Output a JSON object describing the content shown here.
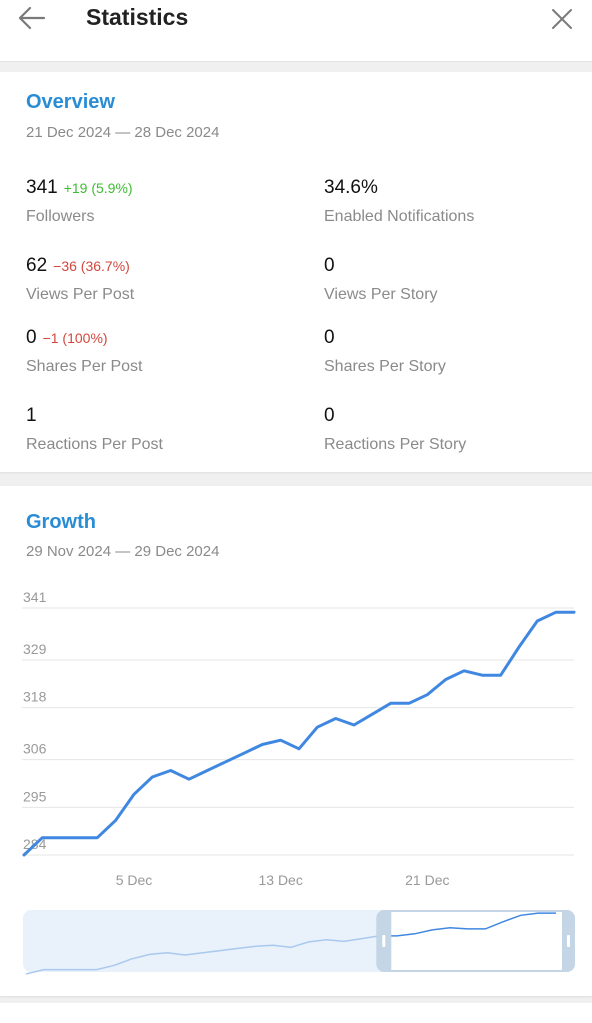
{
  "header": {
    "title": "Statistics",
    "back_icon": "arrow-left-icon",
    "close_icon": "close-icon"
  },
  "overview": {
    "title": "Overview",
    "date_range": "21 Dec 2024 — 28 Dec 2024",
    "stats": [
      {
        "value": "341",
        "delta": "+19 (5.9%)",
        "delta_dir": "up",
        "label": "Followers"
      },
      {
        "value": "34.6%",
        "delta": "",
        "delta_dir": "",
        "label": "Enabled Notifications"
      },
      {
        "value": "62",
        "delta": "−36 (36.7%)",
        "delta_dir": "down",
        "label": "Views Per Post"
      },
      {
        "value": "0",
        "delta": "",
        "delta_dir": "",
        "label": "Views Per Story"
      },
      {
        "value": "0",
        "delta": "−1 (100%)",
        "delta_dir": "down",
        "label": "Shares Per Post"
      },
      {
        "value": "0",
        "delta": "",
        "delta_dir": "",
        "label": "Shares Per Story"
      },
      {
        "value": "1",
        "delta": "",
        "delta_dir": "",
        "label": "Reactions Per Post"
      },
      {
        "value": "0",
        "delta": "",
        "delta_dir": "",
        "label": "Reactions Per Story"
      }
    ]
  },
  "growth": {
    "title": "Growth",
    "date_range": "29 Nov 2024 — 29 Dec 2024"
  },
  "colors": {
    "accent": "#2a8dd4",
    "line": "#3f87e0",
    "positive": "#3ebd33",
    "negative": "#d2473e",
    "muted": "#8a8a8a"
  },
  "chart_data": {
    "type": "line",
    "title": "",
    "xlabel": "",
    "ylabel": "",
    "x_tick_labels": [
      "5 Dec",
      "13 Dec",
      "21 Dec"
    ],
    "x_tick_days": [
      6,
      14,
      22
    ],
    "y_tick_labels": [
      "284",
      "295",
      "306",
      "318",
      "329",
      "341"
    ],
    "y_ticks": [
      284,
      295,
      306,
      318,
      329,
      341
    ],
    "ylim": [
      284,
      341
    ],
    "grid": true,
    "series": [
      {
        "name": "",
        "days": [
          0,
          1,
          2,
          3,
          4,
          5,
          6,
          7,
          8,
          9,
          10,
          11,
          12,
          13,
          14,
          15,
          16,
          17,
          18,
          19,
          20,
          21,
          22,
          23,
          24,
          25,
          26,
          27,
          28,
          29,
          30
        ],
        "values": [
          284,
          288,
          288,
          288,
          288,
          292,
          298,
          302,
          303.5,
          301.5,
          303.5,
          305.5,
          307.5,
          309.5,
          310.5,
          308.5,
          313.5,
          315.5,
          314,
          316.5,
          319,
          319,
          321,
          324.5,
          326.5,
          325.5,
          325.5,
          332,
          338,
          340,
          340
        ]
      }
    ]
  },
  "navigator": {
    "handle_icon": "grip-handle-icon",
    "window_start_fraction": 0.64,
    "window_end_fraction": 1.0
  }
}
